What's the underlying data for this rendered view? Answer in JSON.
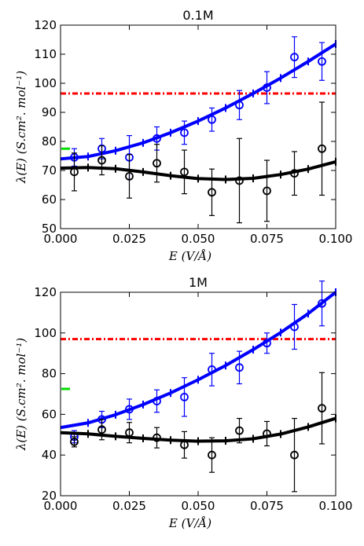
{
  "chart_data": [
    {
      "type": "scatter",
      "title": "0.1M",
      "xlabel": "E (V/Å)",
      "ylabel": "λ(E) (S.cm². mol⁻¹)",
      "xlim": [
        0.0,
        0.1
      ],
      "ylim": [
        50,
        120
      ],
      "xticks": [
        "0.000",
        "0.025",
        "0.050",
        "0.075",
        "0.100"
      ],
      "yticks": [
        "50",
        "60",
        "70",
        "80",
        "90",
        "100",
        "110",
        "120"
      ],
      "grid": false,
      "reference_line": {
        "y": 96.5,
        "color": "#ff0000",
        "style": "dash-dot"
      },
      "reference_mark": {
        "y": 77.5,
        "color": "#00dd00"
      },
      "series": [
        {
          "color": "#0000ff",
          "x": [
            0.005,
            0.015,
            0.025,
            0.035,
            0.045,
            0.055,
            0.065,
            0.075,
            0.085,
            0.095
          ],
          "y": [
            74.5,
            77.5,
            74.5,
            81,
            83,
            87.5,
            92.5,
            98.5,
            109,
            107.5
          ],
          "err": [
            3,
            3.5,
            7.5,
            4,
            4,
            4,
            5,
            5.5,
            7,
            6.5
          ],
          "fit_x": [
            0.0,
            0.01,
            0.02,
            0.03,
            0.04,
            0.05,
            0.06,
            0.07,
            0.08,
            0.09,
            0.1
          ],
          "fit_y": [
            74,
            74.8,
            76.8,
            79.5,
            83,
            87,
            91.5,
            96.5,
            101.8,
            107.5,
            113.5
          ]
        },
        {
          "color": "#000000",
          "x": [
            0.005,
            0.015,
            0.025,
            0.035,
            0.045,
            0.055,
            0.065,
            0.075,
            0.085,
            0.095
          ],
          "y": [
            69.5,
            73.5,
            68,
            72.5,
            69.5,
            62.5,
            66.5,
            63,
            69,
            77.5
          ],
          "err": [
            6.5,
            5,
            7.5,
            6.5,
            7.5,
            8,
            14.5,
            10.5,
            7.5,
            16
          ],
          "fit_x": [
            0.0,
            0.01,
            0.02,
            0.03,
            0.04,
            0.05,
            0.06,
            0.07,
            0.08,
            0.09,
            0.1
          ],
          "fit_y": [
            70.8,
            71,
            70.6,
            69.5,
            68.2,
            67.2,
            66.9,
            67.3,
            68.6,
            70.5,
            73
          ]
        }
      ]
    },
    {
      "type": "scatter",
      "title": "1M",
      "xlabel": "E (V/Å)",
      "ylabel": "λ(E) (S.cm². mol⁻¹)",
      "xlim": [
        0.0,
        0.1
      ],
      "ylim": [
        20,
        120
      ],
      "xticks": [
        "0.000",
        "0.025",
        "0.050",
        "0.075",
        "0.100"
      ],
      "yticks": [
        "20",
        "40",
        "60",
        "80",
        "100",
        "120"
      ],
      "grid": false,
      "reference_line": {
        "y": 97,
        "color": "#ff0000",
        "style": "dash-dot"
      },
      "reference_mark": {
        "y": 72.5,
        "color": "#00dd00"
      },
      "series": [
        {
          "color": "#0000ff",
          "x": [
            0.005,
            0.015,
            0.025,
            0.035,
            0.045,
            0.055,
            0.065,
            0.075,
            0.085,
            0.095
          ],
          "y": [
            49,
            57.5,
            62.5,
            66.5,
            68.5,
            82,
            83,
            95,
            103,
            114.5
          ],
          "err": [
            3,
            4,
            5,
            5.5,
            9.5,
            8,
            8,
            5,
            11,
            11
          ],
          "fit_x": [
            0.0,
            0.01,
            0.02,
            0.03,
            0.04,
            0.05,
            0.06,
            0.07,
            0.08,
            0.09,
            0.1
          ],
          "fit_y": [
            53.5,
            55.8,
            59.8,
            64.8,
            70.5,
            77,
            84,
            91.8,
            100.2,
            109.5,
            120
          ]
        },
        {
          "color": "#000000",
          "x": [
            0.005,
            0.015,
            0.025,
            0.035,
            0.045,
            0.055,
            0.065,
            0.075,
            0.085,
            0.095
          ],
          "y": [
            46.5,
            52.5,
            51,
            48.5,
            45,
            40,
            52,
            50.5,
            40,
            63
          ],
          "err": [
            2.5,
            5,
            5,
            5,
            6.5,
            8.5,
            6,
            6,
            18,
            17.5
          ],
          "fit_x": [
            0.0,
            0.01,
            0.02,
            0.03,
            0.04,
            0.05,
            0.06,
            0.07,
            0.08,
            0.09,
            0.1
          ],
          "fit_y": [
            51,
            50.4,
            49.2,
            48.2,
            47.3,
            46.8,
            47,
            48,
            50.3,
            53.8,
            58
          ]
        }
      ]
    }
  ]
}
